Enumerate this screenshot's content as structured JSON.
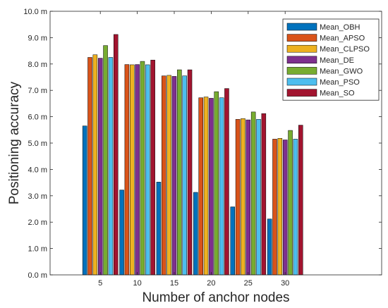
{
  "chart_data": {
    "type": "bar",
    "categories": [
      "5",
      "10",
      "15",
      "20",
      "25",
      "30"
    ],
    "series": [
      {
        "name": "Mean_OBH",
        "color": "#0072BD",
        "values": [
          5.65,
          3.22,
          3.52,
          3.13,
          2.58,
          2.12
        ]
      },
      {
        "name": "Mean_APSO",
        "color": "#D95319",
        "values": [
          8.25,
          7.98,
          7.55,
          6.72,
          5.9,
          5.15
        ]
      },
      {
        "name": "Mean_CLPSO",
        "color": "#EDB120",
        "values": [
          8.35,
          7.97,
          7.57,
          6.75,
          5.93,
          5.18
        ]
      },
      {
        "name": "Mean_DE",
        "color": "#7E2F8E",
        "values": [
          8.22,
          7.98,
          7.53,
          6.7,
          5.88,
          5.12
        ]
      },
      {
        "name": "Mean_GWO",
        "color": "#77AC30",
        "values": [
          8.7,
          8.1,
          7.78,
          6.95,
          6.18,
          5.48
        ]
      },
      {
        "name": "Mean_PSO",
        "color": "#4DBEEE",
        "values": [
          8.25,
          7.97,
          7.55,
          6.72,
          5.9,
          5.15
        ]
      },
      {
        "name": "Mean_SO",
        "color": "#A2142F",
        "values": [
          9.12,
          8.15,
          7.78,
          7.07,
          6.12,
          5.68
        ]
      }
    ],
    "title": "",
    "xlabel": "Number of anchor nodes",
    "ylabel": "Positioning accuracy",
    "ylim": [
      0,
      10
    ],
    "yticks": [
      "0.0 m",
      "1.0 m",
      "2.0 m",
      "3.0 m",
      "4.0 m",
      "5.0 m",
      "6.0 m",
      "7.0 m",
      "8.0 m",
      "9.0 m",
      "10.0 m"
    ],
    "grid": false,
    "legend": "top-right"
  }
}
